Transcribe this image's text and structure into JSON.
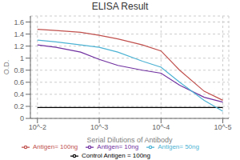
{
  "chart_data": {
    "type": "line",
    "title": "ELISA Result",
    "xlabel": "Serial Dilutions of Antibody",
    "ylabel": "O.D.",
    "x": [
      0.01,
      0.005,
      0.002,
      0.001,
      0.0005,
      0.0002,
      0.0001,
      5e-05,
      2e-05,
      1e-05
    ],
    "series": [
      {
        "name": "Control Antigen = 100ng",
        "color": "#000000",
        "values": [
          0.18,
          0.18,
          0.18,
          0.18,
          0.18,
          0.18,
          0.18,
          0.18,
          0.18,
          0.18
        ]
      },
      {
        "name": "Antigen= 10ng",
        "color": "#7030a0",
        "values": [
          1.22,
          1.18,
          1.1,
          0.98,
          0.88,
          0.8,
          0.75,
          0.55,
          0.35,
          0.27
        ]
      },
      {
        "name": "Antigen= 50ng",
        "color": "#4db3d4",
        "values": [
          1.3,
          1.27,
          1.22,
          1.18,
          1.1,
          0.95,
          0.85,
          0.6,
          0.3,
          0.12
        ]
      },
      {
        "name": "Antigen= 100ng",
        "color": "#c0504d",
        "values": [
          1.48,
          1.46,
          1.43,
          1.38,
          1.32,
          1.22,
          1.12,
          0.8,
          0.45,
          0.3
        ]
      }
    ],
    "log": "x",
    "xlim": [
      0.013,
      8e-06
    ],
    "xticks": [
      {
        "value": 0.01,
        "label": "10^-2"
      },
      {
        "value": 0.001,
        "label": "10^-3"
      },
      {
        "value": 0.0001,
        "label": "10^-4"
      },
      {
        "value": 1e-05,
        "label": "10^-5"
      }
    ],
    "ylim": [
      0,
      1.7
    ],
    "yticks": [
      0,
      0.2,
      0.4,
      0.6,
      0.8,
      1,
      1.2,
      1.4,
      1.6
    ],
    "grid": true,
    "legend": "bottom"
  }
}
